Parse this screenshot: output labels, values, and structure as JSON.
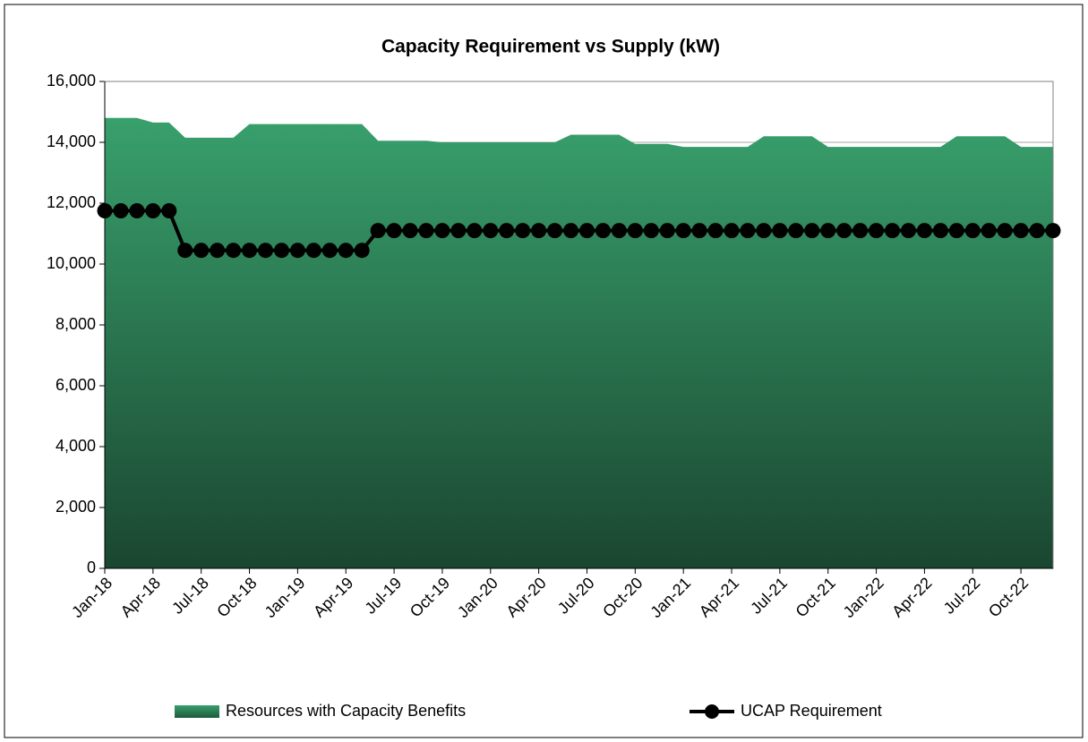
{
  "chart_data": {
    "type": "area_line",
    "title": "Capacity Requirement vs Supply (kW)",
    "categories": [
      "Jan-18",
      null,
      null,
      "Apr-18",
      null,
      null,
      "Jul-18",
      null,
      null,
      "Oct-18",
      null,
      null,
      "Jan-19",
      null,
      null,
      "Apr-19",
      null,
      null,
      "Jul-19",
      null,
      null,
      "Oct-19",
      null,
      null,
      "Jan-20",
      null,
      null,
      "Apr-20",
      null,
      null,
      "Jul-20",
      null,
      null,
      "Oct-20",
      null,
      null,
      "Jan-21",
      null,
      null,
      "Apr-21",
      null,
      null,
      "Jul-21",
      null,
      null,
      "Oct-21",
      null,
      null,
      "Jan-22",
      null,
      null,
      "Apr-22",
      null,
      null,
      "Jul-22",
      null,
      null,
      "Oct-22",
      null,
      null
    ],
    "series": [
      {
        "name": "Resources with Capacity Benefits",
        "kind": "area",
        "color": "#349a66",
        "values": [
          14800,
          14800,
          14800,
          14650,
          14650,
          14150,
          14150,
          14150,
          14150,
          14600,
          14600,
          14600,
          14600,
          14600,
          14600,
          14600,
          14600,
          14050,
          14050,
          14050,
          14050,
          14000,
          14000,
          14000,
          14000,
          14000,
          14000,
          14000,
          14000,
          14250,
          14250,
          14250,
          14250,
          13950,
          13950,
          13950,
          13850,
          13850,
          13850,
          13850,
          13850,
          14200,
          14200,
          14200,
          14200,
          13850,
          13850,
          13850,
          13850,
          13850,
          13850,
          13850,
          13850,
          14200,
          14200,
          14200,
          14200,
          13850,
          13850,
          13850
        ]
      },
      {
        "name": "UCAP Requirement",
        "kind": "line",
        "color": "#000000",
        "values": [
          11750,
          11750,
          11750,
          11750,
          11750,
          10450,
          10450,
          10450,
          10450,
          10450,
          10450,
          10450,
          10450,
          10450,
          10450,
          10450,
          10450,
          11100,
          11100,
          11100,
          11100,
          11100,
          11100,
          11100,
          11100,
          11100,
          11100,
          11100,
          11100,
          11100,
          11100,
          11100,
          11100,
          11100,
          11100,
          11100,
          11100,
          11100,
          11100,
          11100,
          11100,
          11100,
          11100,
          11100,
          11100,
          11100,
          11100,
          11100,
          11100,
          11100,
          11100,
          11100,
          11100,
          11100,
          11100,
          11100,
          11100,
          11100,
          11100,
          11100
        ]
      }
    ],
    "ylim": [
      0,
      16000
    ],
    "yticks": [
      0,
      {
        "value": 2000,
        "label": "2,000"
      },
      {
        "value": 4000,
        "label": "4,000"
      },
      {
        "value": 6000,
        "label": "6,000"
      },
      {
        "value": 8000,
        "label": "8,000"
      },
      {
        "value": 10000,
        "label": "10,000"
      },
      {
        "value": 12000,
        "label": "12,000"
      },
      {
        "value": 14000,
        "label": "14,000"
      },
      {
        "value": 16000,
        "label": "16,000"
      }
    ],
    "grid": true,
    "legend": "bottom"
  }
}
